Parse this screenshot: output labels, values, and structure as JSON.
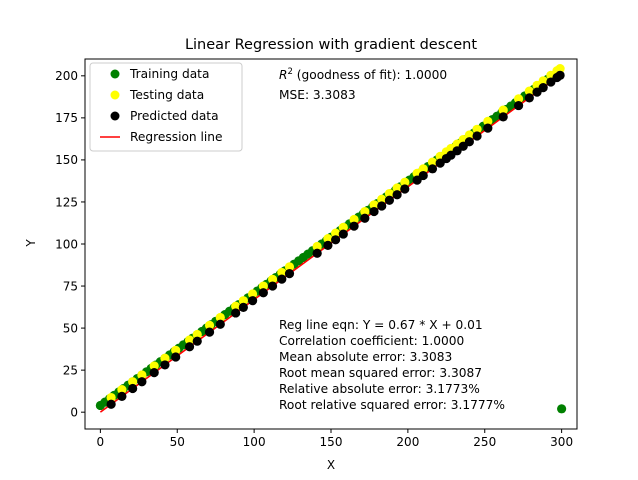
{
  "chart_data": {
    "type": "scatter",
    "title": "Linear Regression with gradient descent",
    "xlabel": "X",
    "ylabel": "Y",
    "xlim": [
      -10,
      310
    ],
    "ylim": [
      -10,
      210
    ],
    "xticks": [
      0,
      50,
      100,
      150,
      200,
      250,
      300
    ],
    "yticks": [
      0,
      25,
      50,
      75,
      100,
      125,
      150,
      175,
      200
    ],
    "grid": false,
    "legend_position": "top-left",
    "legend": [
      "Training data",
      "Testing data",
      "Predicted data",
      "Regression line"
    ],
    "colors": {
      "training": "#008000",
      "testing": "#ffff00",
      "predicted": "#000000",
      "regression": "#ff0000"
    },
    "r2_prefix": "R",
    "r2_sup": "2",
    "r2_suffix": " (goodness of fit): 1.0000",
    "mse_text": "MSE: 3.3083",
    "stats_lines": [
      "Reg line eqn: Y = 0.67 * X + 0.01",
      "Correlation coefficient: 1.0000",
      "Mean absolute error: 3.3083",
      "Root mean squared error: 3.3087",
      "Relative absolute error: 3.1773%",
      "Root relative squared error: 3.1777%"
    ],
    "regression_line": {
      "slope": 0.67,
      "intercept": 0.01,
      "x": [
        0,
        300
      ]
    },
    "series": [
      {
        "name": "Training data",
        "x": [
          0,
          3,
          6,
          9,
          12,
          15,
          18,
          21,
          24,
          27,
          30,
          33,
          36,
          39,
          42,
          45,
          48,
          51,
          54,
          57,
          60,
          63,
          66,
          69,
          72,
          75,
          78,
          81,
          84,
          87,
          90,
          93,
          96,
          99,
          102,
          105,
          108,
          111,
          114,
          117,
          120,
          123,
          126,
          129,
          132,
          135,
          138,
          141,
          144,
          147,
          150,
          153,
          156,
          159,
          162,
          165,
          168,
          171,
          174,
          177,
          180,
          183,
          186,
          189,
          192,
          195,
          198,
          201,
          204,
          207,
          210,
          213,
          216,
          219,
          222,
          225,
          228,
          231,
          234,
          237,
          240,
          243,
          246,
          249,
          252,
          255,
          258,
          261,
          264,
          267,
          270,
          273,
          276,
          279,
          282,
          285,
          288,
          291,
          294,
          297,
          300
        ],
        "y": [
          4,
          6,
          8,
          10,
          12,
          14,
          16,
          18,
          20,
          22,
          24,
          26,
          28,
          30,
          32,
          34,
          36,
          38,
          40,
          42,
          44,
          46,
          48,
          50,
          52,
          54,
          56,
          58,
          60,
          62,
          64,
          66,
          68,
          70,
          72,
          74,
          76,
          78,
          80,
          82,
          84,
          86,
          88,
          90,
          92,
          94,
          96,
          98,
          100,
          102,
          104,
          106,
          108,
          110,
          112,
          114,
          116,
          118,
          120,
          122,
          124,
          126,
          128,
          130,
          132,
          134,
          136,
          138,
          140,
          142,
          144,
          146,
          148,
          150,
          152,
          154,
          156,
          158,
          160,
          162,
          164,
          166,
          168,
          170,
          172,
          174,
          176,
          178,
          180,
          182,
          184,
          186,
          188,
          190,
          192,
          194,
          196,
          198,
          200,
          202,
          2
        ]
      },
      {
        "name": "Testing data",
        "x": [
          7,
          14,
          21,
          27,
          35,
          42,
          49,
          58,
          63,
          71,
          78,
          88,
          93,
          99,
          106,
          112,
          118,
          123,
          141,
          148,
          153,
          158,
          165,
          172,
          178,
          183,
          188,
          193,
          198,
          206,
          210,
          216,
          221,
          225,
          228,
          232,
          236,
          240,
          245,
          252,
          262,
          272,
          279,
          284,
          288,
          293,
          297,
          299
        ],
        "y": [
          8.7,
          13.4,
          18.1,
          22.1,
          27.5,
          32.1,
          36.8,
          42.9,
          46.2,
          51.6,
          56.3,
          63.0,
          66.3,
          70.3,
          75.0,
          79.0,
          83.1,
          86.4,
          98.5,
          103.2,
          106.5,
          109.9,
          114.6,
          119.3,
          123.3,
          126.6,
          130.0,
          133.3,
          136.7,
          142.0,
          144.7,
          148.7,
          152.1,
          154.8,
          156.8,
          159.4,
          162.1,
          164.8,
          168.2,
          172.9,
          179.6,
          186.3,
          190.9,
          194.3,
          197.0,
          200.3,
          203.0,
          204.3
        ]
      },
      {
        "name": "Predicted data",
        "x": [
          7,
          14,
          21,
          27,
          35,
          42,
          49,
          58,
          63,
          71,
          78,
          88,
          93,
          99,
          106,
          112,
          118,
          123,
          141,
          148,
          153,
          158,
          165,
          172,
          178,
          183,
          188,
          193,
          198,
          206,
          210,
          216,
          221,
          225,
          228,
          232,
          236,
          240,
          245,
          252,
          262,
          272,
          279,
          284,
          288,
          293,
          297,
          299
        ],
        "y": [
          4.7,
          9.4,
          14.1,
          18.1,
          23.5,
          28.1,
          32.8,
          38.9,
          42.2,
          47.6,
          52.3,
          59.0,
          62.3,
          66.3,
          71.0,
          75.0,
          79.1,
          82.4,
          94.5,
          99.2,
          102.5,
          105.9,
          110.6,
          115.3,
          119.3,
          122.6,
          126.0,
          129.3,
          132.7,
          138.0,
          140.7,
          144.7,
          148.1,
          150.8,
          152.8,
          155.4,
          158.1,
          160.8,
          164.2,
          168.9,
          175.6,
          182.3,
          186.9,
          190.3,
          193.0,
          196.3,
          199.0,
          200.3
        ]
      }
    ]
  }
}
